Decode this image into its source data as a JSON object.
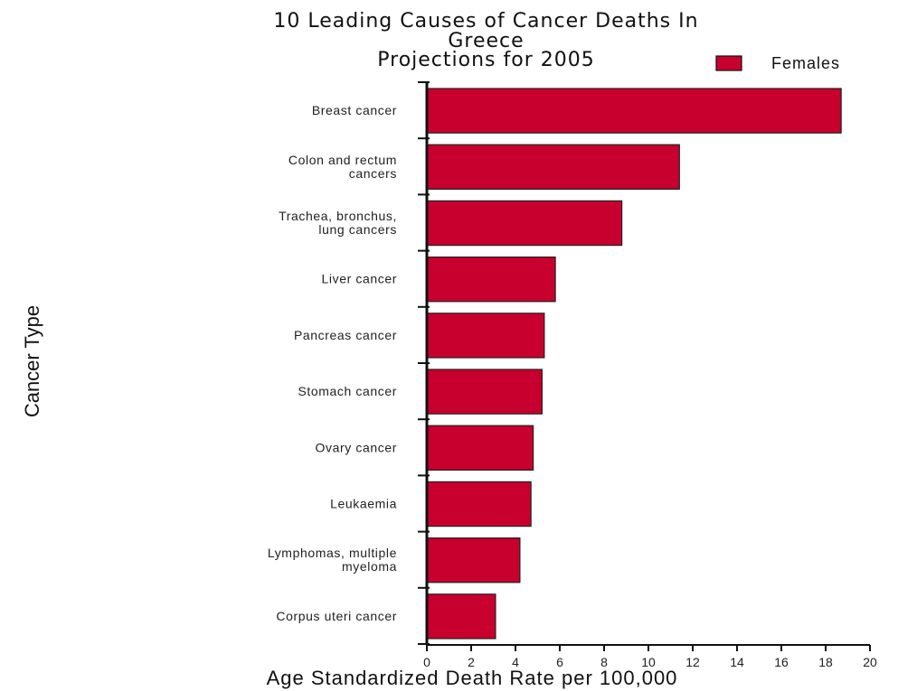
{
  "chart_data": {
    "type": "bar",
    "orientation": "horizontal",
    "title_lines": [
      "10 Leading Causes of Cancer Deaths In",
      "Greece",
      "Projections for 2005"
    ],
    "xlabel": "Age Standardized Death Rate per 100,000",
    "ylabel": "Cancer Type",
    "xlim": [
      0,
      20
    ],
    "xticks": [
      "0",
      "2",
      "4",
      "6",
      "8",
      "10",
      "12",
      "14",
      "16",
      "18",
      "20"
    ],
    "categories": [
      [
        "Breast cancer"
      ],
      [
        "Colon and rectum",
        "cancers"
      ],
      [
        "Trachea, bronchus,",
        "lung cancers"
      ],
      [
        "Liver cancer"
      ],
      [
        "Pancreas cancer"
      ],
      [
        "Stomach cancer"
      ],
      [
        "Ovary cancer"
      ],
      [
        "Leukaemia"
      ],
      [
        "Lymphomas, multiple",
        "myeloma"
      ],
      [
        "Corpus uteri cancer"
      ]
    ],
    "series": [
      {
        "name": "Females",
        "color": "#c8002e",
        "values": [
          18.7,
          11.4,
          8.8,
          5.8,
          5.3,
          5.2,
          4.8,
          4.7,
          4.2,
          3.1
        ]
      }
    ],
    "legend": {
      "position": "top-right",
      "entries": [
        "Females"
      ]
    },
    "grid": false
  }
}
